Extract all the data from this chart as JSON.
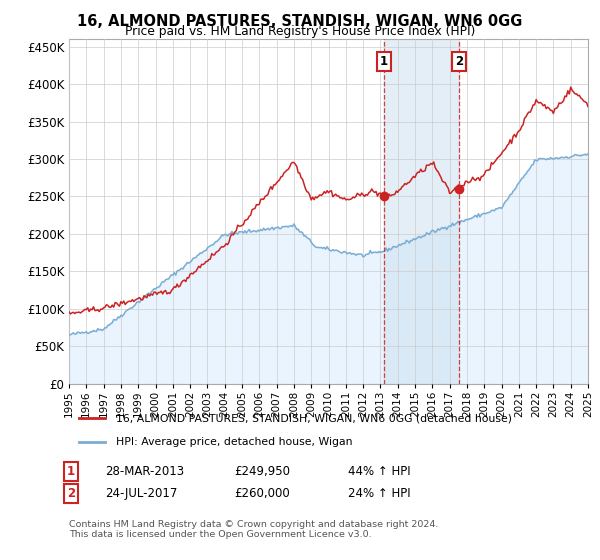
{
  "title": "16, ALMOND PASTURES, STANDISH, WIGAN, WN6 0GG",
  "subtitle": "Price paid vs. HM Land Registry's House Price Index (HPI)",
  "legend_line1": "16, ALMOND PASTURES, STANDISH, WIGAN, WN6 0GG (detached house)",
  "legend_line2": "HPI: Average price, detached house, Wigan",
  "footer": "Contains HM Land Registry data © Crown copyright and database right 2024.\nThis data is licensed under the Open Government Licence v3.0.",
  "annotation1": {
    "label": "1",
    "date": "28-MAR-2013",
    "price": "£249,950",
    "pct": "44% ↑ HPI"
  },
  "annotation2": {
    "label": "2",
    "date": "24-JUL-2017",
    "price": "£260,000",
    "pct": "24% ↑ HPI"
  },
  "hpi_color": "#7aadd4",
  "price_color": "#cc2222",
  "bg_fill_color": "#ddeeff",
  "ylim": [
    0,
    460000
  ],
  "yticks": [
    0,
    50000,
    100000,
    150000,
    200000,
    250000,
    300000,
    350000,
    400000,
    450000
  ],
  "sale1_x": 2013.22,
  "sale1_y": 249950,
  "sale2_x": 2017.56,
  "sale2_y": 260000,
  "xmin": 1995,
  "xmax": 2025
}
